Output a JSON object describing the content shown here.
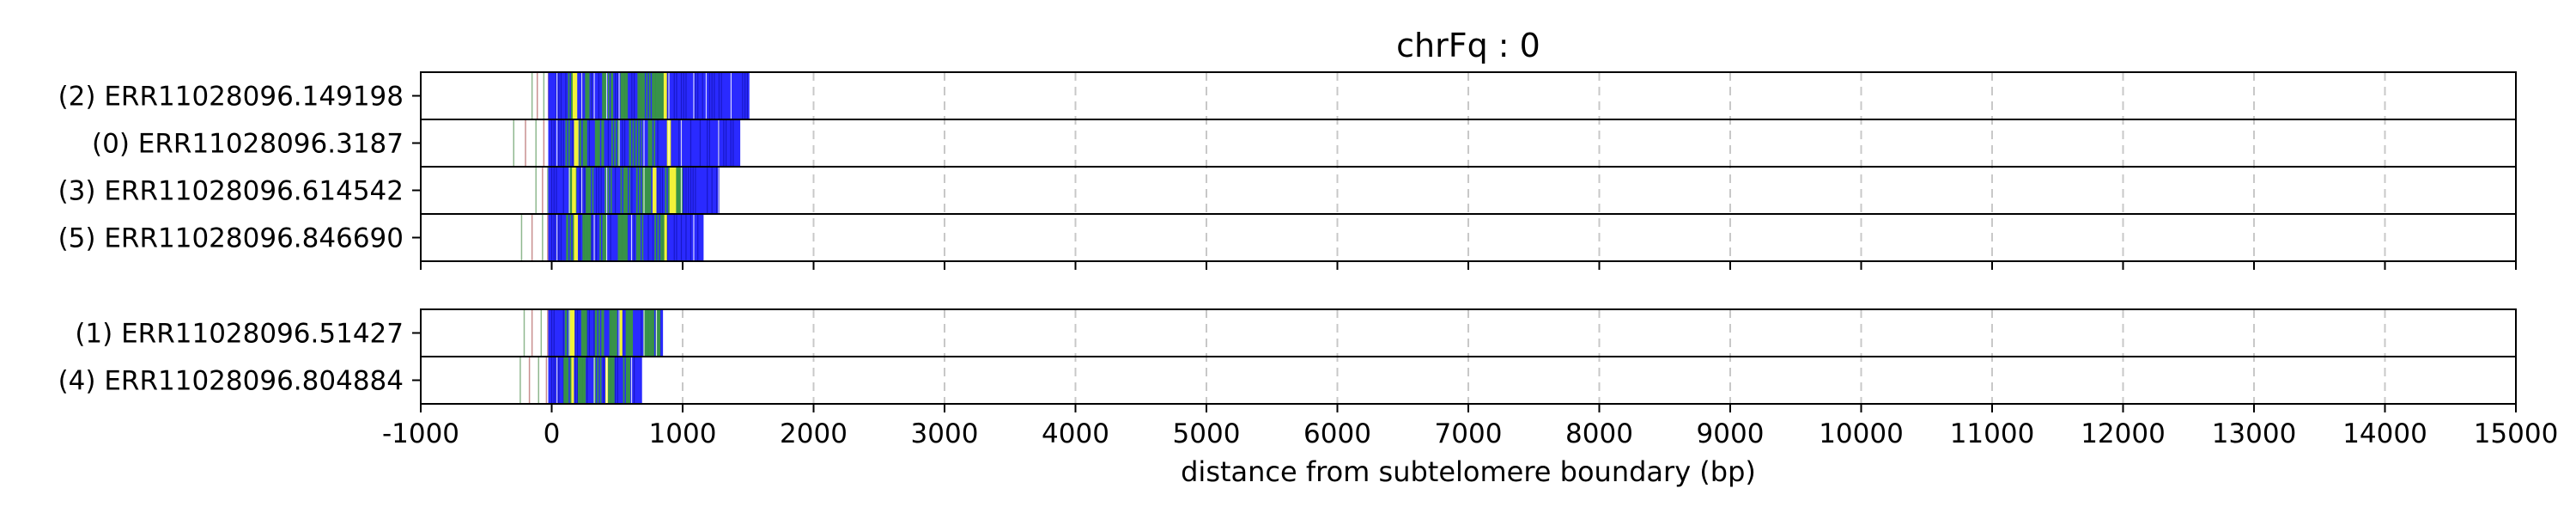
{
  "chart_data": {
    "type": "read-track",
    "title": "chrFq : 0",
    "xlabel": "distance from subtelomere boundary (bp)",
    "xlim": [
      -1000,
      15000
    ],
    "xticks": [
      -1000,
      0,
      1000,
      2000,
      3000,
      4000,
      5000,
      6000,
      7000,
      8000,
      9000,
      10000,
      11000,
      12000,
      13000,
      14000,
      15000
    ],
    "tick_labels": [
      "-1000",
      "0",
      "1000",
      "2000",
      "3000",
      "4000",
      "5000",
      "6000",
      "7000",
      "8000",
      "9000",
      "10000",
      "11000",
      "12000",
      "13000",
      "14000",
      "15000"
    ],
    "grid": "vertical dashed at ticks",
    "colors": {
      "blue": "#2a2aff",
      "green": "#3a9b3a",
      "yellow": "#f2f23a",
      "red": "#d44b4b",
      "frame": "#000000",
      "grid": "#c8c8c8"
    },
    "groups": [
      {
        "reads": [
          {
            "label": "(2) ERR11028096.149198",
            "start": -150,
            "end": 1510,
            "ticks": [
              -150,
              -110,
              -60,
              -25
            ],
            "green": [
              [
                120,
                190
              ],
              [
                250,
                300
              ],
              [
                380,
                470
              ],
              [
                520,
                590
              ],
              [
                650,
                860
              ]
            ],
            "yellow": [
              [
                160,
                195
              ],
              [
                855,
                880
              ]
            ],
            "red": []
          },
          {
            "label": "(0) ERR11028096.3187",
            "start": -290,
            "end": 1440,
            "ticks": [
              -290,
              -200,
              -120,
              -60,
              -20
            ],
            "green": [
              [
                100,
                150
              ],
              [
                210,
                280
              ],
              [
                330,
                400
              ],
              [
                450,
                520
              ],
              [
                590,
                690
              ],
              [
                730,
                800
              ]
            ],
            "yellow": [
              [
                170,
                205
              ],
              [
                880,
                910
              ]
            ],
            "red": []
          },
          {
            "label": "(3) ERR11028096.614542",
            "start": -120,
            "end": 1280,
            "ticks": [
              -120,
              -70,
              -30
            ],
            "green": [
              [
                130,
                190
              ],
              [
                260,
                320
              ],
              [
                400,
                460
              ],
              [
                520,
                600
              ],
              [
                640,
                760
              ],
              [
                860,
                1000
              ]
            ],
            "yellow": [
              [
                155,
                185
              ],
              [
                770,
                800
              ],
              [
                900,
                950
              ]
            ],
            "red": []
          },
          {
            "label": "(5) ERR11028096.846690",
            "start": -230,
            "end": 1160,
            "ticks": [
              -230,
              -150,
              -70,
              -30
            ],
            "green": [
              [
                110,
                170
              ],
              [
                230,
                300
              ],
              [
                360,
                420
              ],
              [
                500,
                580
              ],
              [
                640,
                700
              ],
              [
                780,
                880
              ]
            ],
            "yellow": [
              [
                170,
                200
              ],
              [
                860,
                880
              ]
            ],
            "red": []
          }
        ]
      },
      {
        "reads": [
          {
            "label": "(1) ERR11028096.51427",
            "start": -210,
            "end": 850,
            "ticks": [
              -210,
              -150,
              -80,
              -30
            ],
            "green": [
              [
                100,
                160
              ],
              [
                220,
                270
              ],
              [
                330,
                400
              ],
              [
                440,
                500
              ],
              [
                560,
                620
              ],
              [
                700,
                830
              ]
            ],
            "yellow": [
              [
                140,
                175
              ],
              [
                520,
                540
              ]
            ],
            "red": []
          },
          {
            "label": "(4) ERR11028096.804884",
            "start": -240,
            "end": 690,
            "ticks": [
              -240,
              -170,
              -100,
              -40
            ],
            "green": [
              [
                90,
                150
              ],
              [
                200,
                260
              ],
              [
                320,
                380
              ],
              [
                430,
                480
              ],
              [
                540,
                600
              ]
            ],
            "yellow": [
              [
                150,
                170
              ],
              [
                410,
                430
              ]
            ],
            "red": []
          }
        ]
      }
    ]
  }
}
